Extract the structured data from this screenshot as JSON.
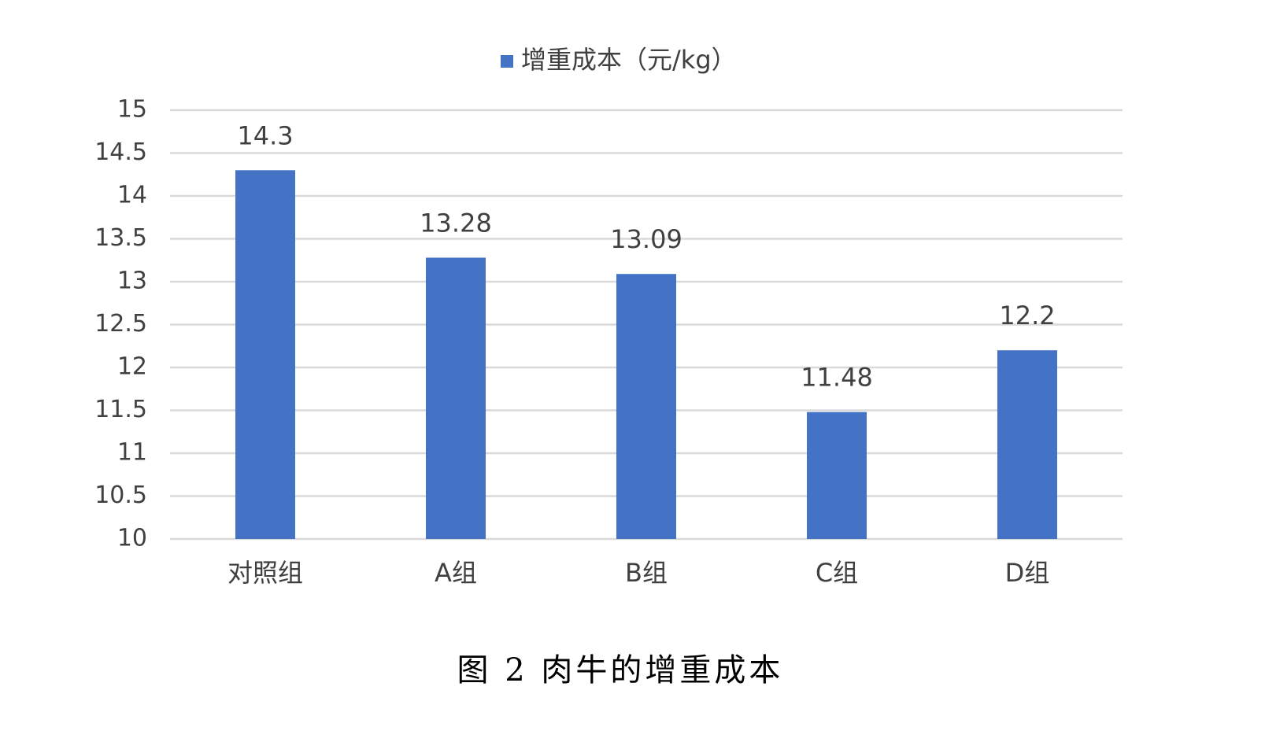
{
  "chart_data": {
    "type": "bar",
    "categories": [
      "对照组",
      "A组",
      "B组",
      "C组",
      "D组"
    ],
    "series": [
      {
        "name": "增重成本（元/kg）",
        "color": "#4472c4",
        "values": [
          14.3,
          13.28,
          13.09,
          11.48,
          12.2
        ]
      }
    ],
    "ylim": [
      10,
      15
    ],
    "yticks": [
      10,
      10.5,
      11,
      11.5,
      12,
      12.5,
      13,
      13.5,
      14,
      14.5,
      15
    ],
    "grid": true,
    "legend": "top",
    "caption": "图 2  肉牛的增重成本"
  }
}
